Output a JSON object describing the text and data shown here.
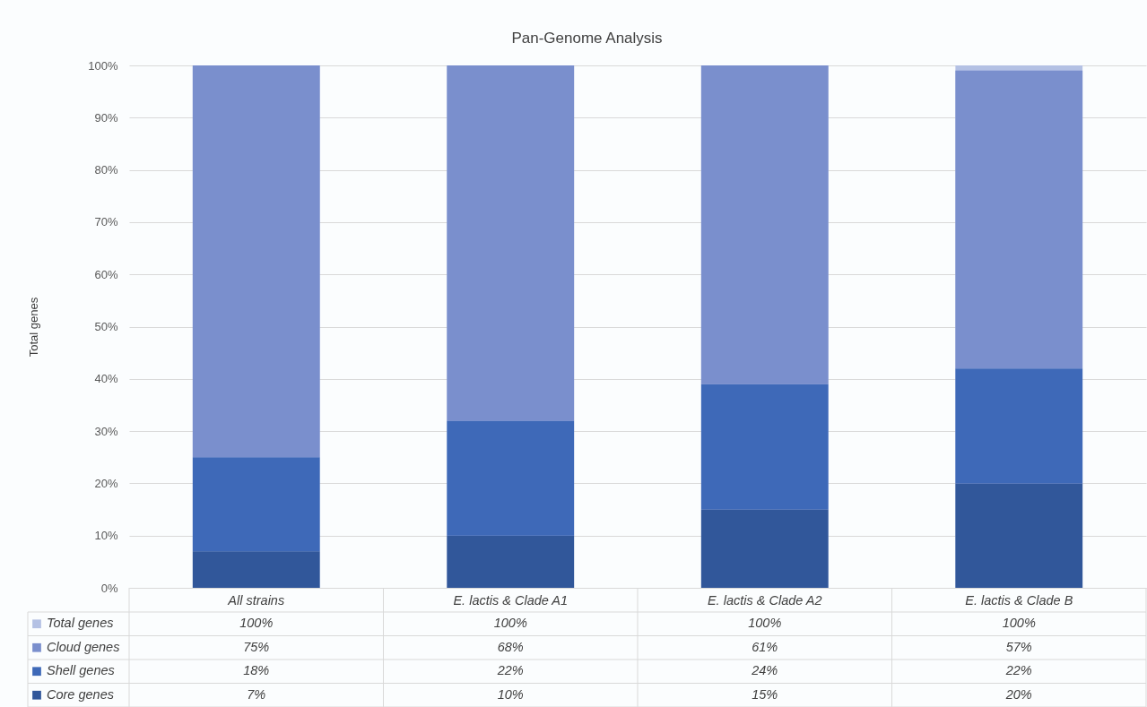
{
  "chart_data": {
    "type": "bar",
    "title": "Pan-Genome Analysis",
    "ylabel": "Total genes",
    "stacked": true,
    "grid": "y",
    "legend": "bottom",
    "categories": [
      "All strains",
      "E. lactis & Clade A1",
      "E. lactis & Clade A2",
      "E. lactis & Clade B"
    ],
    "series": [
      {
        "name": "Core genes",
        "color": "#31579a",
        "values": [
          7,
          10,
          15,
          20
        ],
        "value_labels": [
          "7%",
          "10%",
          "15%",
          "20%"
        ]
      },
      {
        "name": "Shell genes",
        "color": "#3e69b8",
        "values": [
          18,
          22,
          24,
          22
        ],
        "value_labels": [
          "18%",
          "22%",
          "24%",
          "22%"
        ]
      },
      {
        "name": "Cloud genes",
        "color": "#7a8fcd",
        "values": [
          75,
          68,
          61,
          57
        ],
        "value_labels": [
          "75%",
          "68%",
          "61%",
          "57%"
        ]
      },
      {
        "name": "Total genes",
        "color": "#b4c1e4",
        "axis": "y2",
        "values": [
          100,
          100,
          100,
          100
        ],
        "value_labels": [
          "100%",
          "100%",
          "100%",
          "100%"
        ]
      }
    ],
    "ylim": [
      0,
      100
    ],
    "y2lim": [
      0,
      100
    ],
    "yticks": [
      {
        "value": 0,
        "label": "0%"
      },
      {
        "value": 10,
        "label": "10%"
      },
      {
        "value": 20,
        "label": "20%"
      },
      {
        "value": 30,
        "label": "30%"
      },
      {
        "value": 40,
        "label": "40%"
      },
      {
        "value": 50,
        "label": "50%"
      },
      {
        "value": 60,
        "label": "60%"
      },
      {
        "value": 70,
        "label": "70%"
      },
      {
        "value": 80,
        "label": "80%"
      },
      {
        "value": 90,
        "label": "90%"
      },
      {
        "value": 100,
        "label": "100%"
      }
    ]
  }
}
